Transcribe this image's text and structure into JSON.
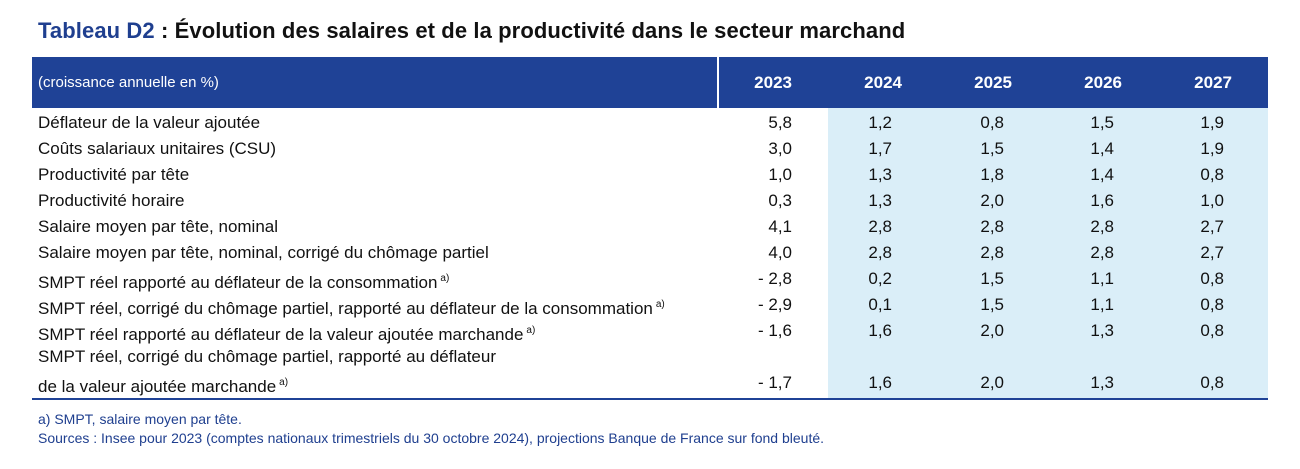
{
  "title": {
    "lead": "Tableau D2",
    "rest": " : Évolution des salaires et de la productivité dans le secteur marchand"
  },
  "header": {
    "label": "(croissance annuelle en %)",
    "years": [
      "2023",
      "2024",
      "2025",
      "2026",
      "2027"
    ]
  },
  "rows": [
    {
      "label": "Déflateur de la valeur ajoutée",
      "note": "",
      "values": [
        "5,8",
        "1,2",
        "0,8",
        "1,5",
        "1,9"
      ]
    },
    {
      "label": "Coûts salariaux unitaires (CSU)",
      "note": "",
      "values": [
        "3,0",
        "1,7",
        "1,5",
        "1,4",
        "1,9"
      ]
    },
    {
      "label": "Productivité par tête",
      "note": "",
      "values": [
        "1,0",
        "1,3",
        "1,8",
        "1,4",
        "0,8"
      ]
    },
    {
      "label": "Productivité horaire",
      "note": "",
      "values": [
        "0,3",
        "1,3",
        "2,0",
        "1,6",
        "1,0"
      ]
    },
    {
      "label": "Salaire moyen par tête, nominal",
      "note": "",
      "values": [
        "4,1",
        "2,8",
        "2,8",
        "2,8",
        "2,7"
      ]
    },
    {
      "label": "Salaire moyen par tête, nominal, corrigé du chômage partiel",
      "note": "",
      "values": [
        "4,0",
        "2,8",
        "2,8",
        "2,8",
        "2,7"
      ]
    },
    {
      "label": "SMPT réel rapporté au déflateur de la consommation",
      "note": "a)",
      "values": [
        "- 2,8",
        "0,2",
        "1,5",
        "1,1",
        "0,8"
      ]
    },
    {
      "label": "SMPT réel, corrigé du chômage partiel, rapporté au déflateur de la consommation",
      "note": "a)",
      "values": [
        "- 2,9",
        "0,1",
        "1,5",
        "1,1",
        "0,8"
      ]
    },
    {
      "label": "SMPT réel rapporté au déflateur de la valeur ajoutée marchande",
      "note": "a)",
      "values": [
        "- 1,6",
        "1,6",
        "2,0",
        "1,3",
        "0,8"
      ]
    },
    {
      "label_line1": "SMPT réel, corrigé du chômage partiel, rapporté au déflateur",
      "label": "de la valeur ajoutée marchande",
      "note": "a)",
      "values": [
        "- 1,7",
        "1,6",
        "2,0",
        "1,3",
        "0,8"
      ]
    }
  ],
  "notes": {
    "footnote": "a)  SMPT, salaire moyen par tête.",
    "sources": "Sources : Insee pour 2023 (comptes nationaux trimestriels du 30 octobre 2024), projections Banque de France sur fond bleuté."
  },
  "colors": {
    "header_bg": "#1f4296",
    "projection_bg": "#daeef8",
    "title_accent": "#1f3f8f"
  }
}
